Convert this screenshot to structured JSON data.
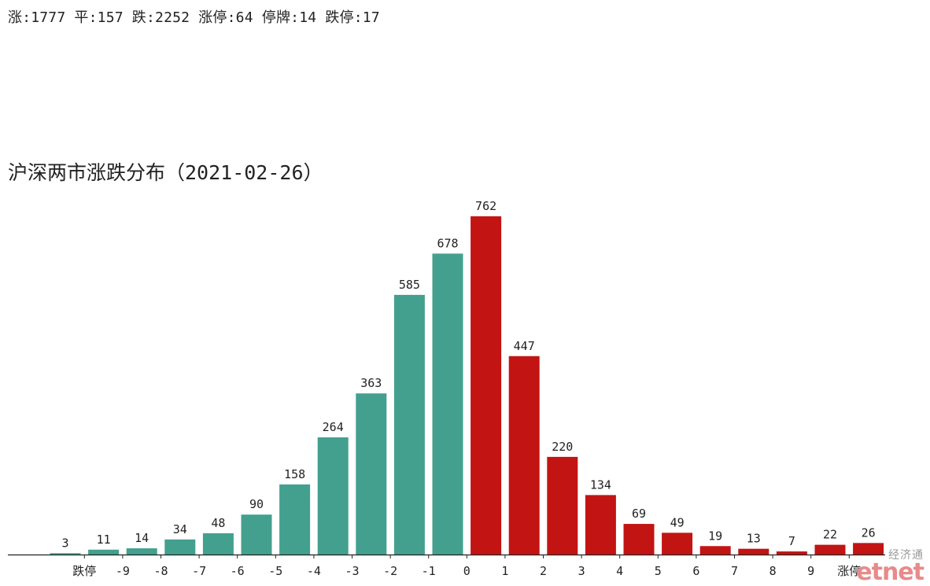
{
  "header": {
    "stats_line": "涨:1777 平:157 跌:2252 涨停:64 停牌:14 跌停:17"
  },
  "chart_data": {
    "type": "bar",
    "title": "沪深两市涨跌分布（2021-02-26）",
    "ylim": [
      0,
      762
    ],
    "grid": false,
    "bars": [
      3,
      11,
      14,
      34,
      48,
      90,
      158,
      264,
      363,
      585,
      678,
      762,
      447,
      220,
      134,
      69,
      49,
      19,
      13,
      7,
      22,
      26
    ],
    "x_ticks": [
      "跌停",
      "-9",
      "-8",
      "-7",
      "-6",
      "-5",
      "-4",
      "-3",
      "-2",
      "-1",
      "0",
      "1",
      "2",
      "3",
      "4",
      "5",
      "6",
      "7",
      "8",
      "9",
      "涨停"
    ],
    "colors": {
      "down": "#43a08e",
      "up": "#c21413",
      "axis": "#222222"
    },
    "up_start_index": 11
  },
  "watermark": {
    "cn": "经济通",
    "en": "etnet"
  }
}
